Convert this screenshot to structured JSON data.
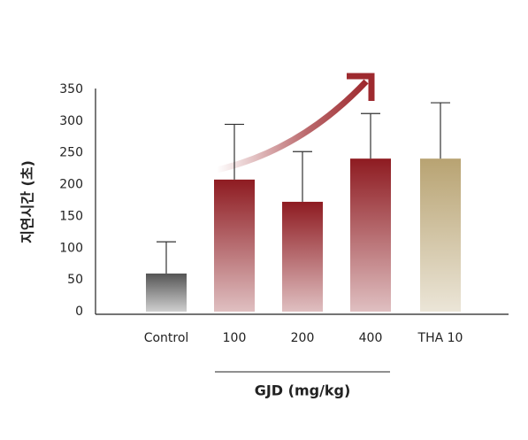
{
  "chart_data": {
    "type": "bar",
    "ylabel": "지연시간 (초)",
    "xlabel": "GJD (mg/kg)",
    "categories": [
      "Control",
      "100",
      "200",
      "400",
      "THA 10"
    ],
    "values": [
      60,
      208,
      173,
      241,
      241
    ],
    "errors": [
      50,
      87,
      79,
      71,
      88
    ],
    "colors": [
      "#555555",
      "#8e1b21",
      "#8e1b21",
      "#8e1b21",
      "#b8a372"
    ],
    "ylim": [
      0,
      350
    ],
    "yticks": [
      0,
      50,
      100,
      150,
      200,
      250,
      300,
      350
    ]
  }
}
